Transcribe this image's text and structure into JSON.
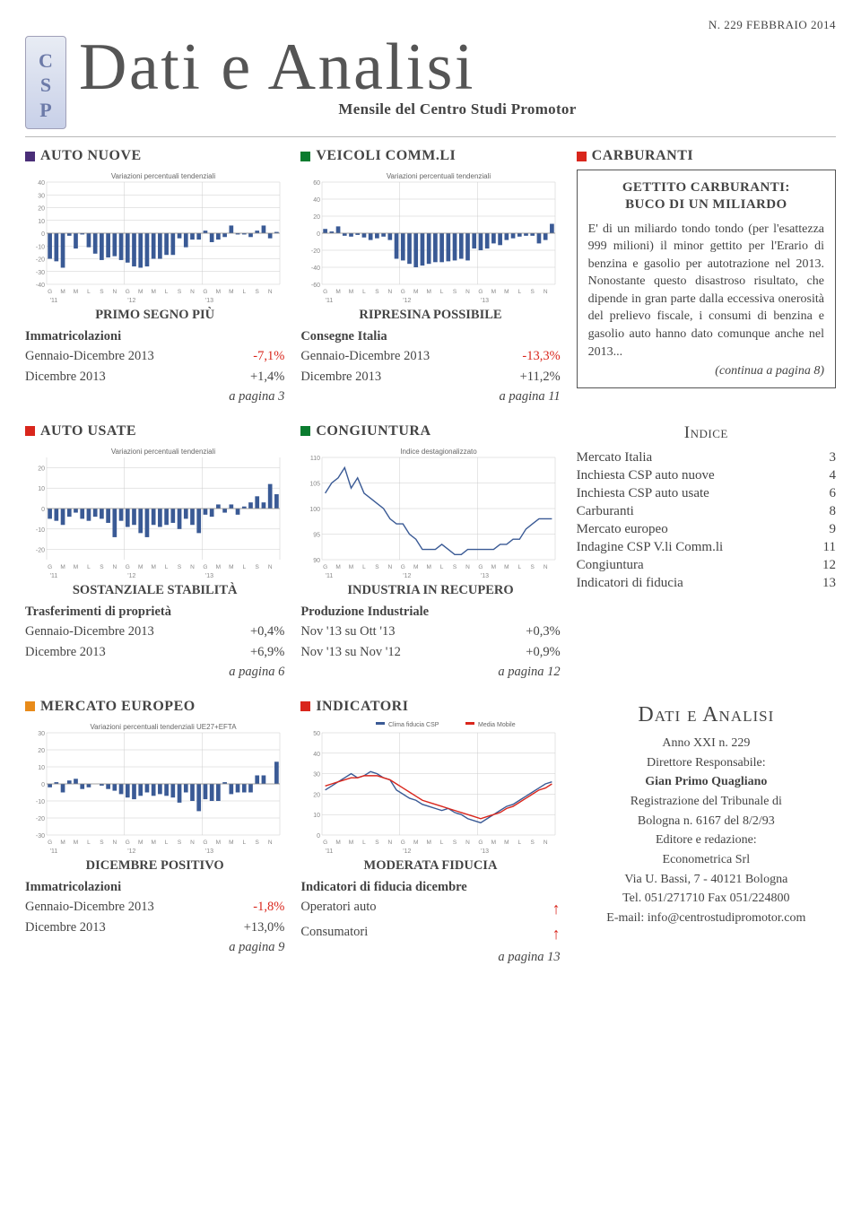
{
  "issue": "N. 229 FEBBRAIO 2014",
  "csp": [
    "C",
    "S",
    "P"
  ],
  "title": "Dati e Analisi",
  "subtitle": "Mensile del Centro Studi Promotor",
  "months": [
    "G",
    "M",
    "M",
    "L",
    "S",
    "N",
    "G",
    "M",
    "M",
    "L",
    "S",
    "N",
    "G",
    "M",
    "M",
    "L",
    "S",
    "N"
  ],
  "xlabels": [
    "'11",
    "'12",
    "'13"
  ],
  "sections": {
    "auto_nuove": {
      "color": "#4a2e78",
      "label": "AUTO NUOVE",
      "chart_label": "Variazioni percentuali tendenziali",
      "ylim": [
        -40,
        40
      ],
      "ytick": 10,
      "bars": [
        -20,
        -22,
        -27,
        -2,
        -12,
        -1,
        -11,
        -16,
        -21,
        -19,
        -18,
        -21,
        -23,
        -26,
        -27,
        -26,
        -20,
        -20,
        -17,
        -17,
        -4,
        -11,
        -5,
        -5,
        2,
        -7,
        -5,
        -3,
        6,
        -1,
        -1,
        -3,
        2,
        6,
        -4,
        1
      ],
      "title": "PRIMO SEGNO PIÙ",
      "head": "Immatricolazioni",
      "row1_label": "Gennaio-Dicembre 2013",
      "row1_val": "-7,1%",
      "row2_label": "Dicembre 2013",
      "row2_val": "+1,4%",
      "page": "a pagina 3"
    },
    "veicoli": {
      "color": "#0a7c2f",
      "label": "VEICOLI COMM.LI",
      "chart_label": "Variazioni percentuali tendenziali",
      "ylim": [
        -60,
        60
      ],
      "ytick": 20,
      "bars": [
        5,
        2,
        8,
        -3,
        -4,
        -2,
        -5,
        -8,
        -6,
        -4,
        -8,
        -30,
        -32,
        -36,
        -40,
        -38,
        -36,
        -34,
        -34,
        -33,
        -32,
        -30,
        -32,
        -18,
        -20,
        -18,
        -12,
        -14,
        -8,
        -6,
        -4,
        -3,
        -3,
        -12,
        -8,
        11
      ],
      "title": "RIPRESINA POSSIBILE",
      "head": "Consegne Italia",
      "row1_label": "Gennaio-Dicembre 2013",
      "row1_val": "-13,3%",
      "row2_label": "Dicembre 2013",
      "row2_val": "+11,2%",
      "page": "a pagina 11"
    },
    "carburanti": {
      "color": "#d9261c",
      "label": "CARBURANTI",
      "box_title_1": "GETTITO CARBURANTI:",
      "box_title_2": "BUCO DI UN MILIARDO",
      "body": "E' di un miliardo tondo tondo (per l'esattezza 999 milioni) il minor gettito per l'Erario di benzina e gasolio per autotrazione nel 2013. Nonostante questo disastroso risultato, che dipende in gran parte dalla eccessiva onerosità del prelievo fiscale, i consumi di benzina e gasolio auto hanno dato comunque anche nel 2013...",
      "cont": "(continua a pagina 8)"
    },
    "auto_usate": {
      "color": "#d9261c",
      "label": "AUTO USATE",
      "chart_label": "Variazioni percentuali tendenziali",
      "ylim": [
        -25,
        25
      ],
      "ytick": 10,
      "yoffset": 5,
      "bars": [
        -5,
        -6,
        -8,
        -4,
        -2,
        -5,
        -6,
        -4,
        -5,
        -7,
        -14,
        -6,
        -9,
        -8,
        -12,
        -14,
        -8,
        -9,
        -8,
        -7,
        -10,
        -5,
        -8,
        -12,
        -3,
        -4,
        2,
        -2,
        2,
        -3,
        1,
        3,
        6,
        3,
        12,
        7
      ],
      "title": "SOSTANZIALE STABILITÀ",
      "head": "Trasferimenti di proprietà",
      "row1_label": "Gennaio-Dicembre 2013",
      "row1_val": "+0,4%",
      "row2_label": "Dicembre 2013",
      "row2_val": "+6,9%",
      "page": "a pagina 6"
    },
    "congiuntura": {
      "color": "#0a7c2f",
      "label": "CONGIUNTURA",
      "chart_label": "Indice destagionalizzato",
      "ylim": [
        90,
        110
      ],
      "ytick": 5,
      "line": [
        103,
        105,
        106,
        108,
        104,
        106,
        103,
        102,
        101,
        100,
        98,
        97,
        97,
        95,
        94,
        92,
        92,
        92,
        93,
        92,
        91,
        91,
        92,
        92,
        92,
        92,
        92,
        93,
        93,
        94,
        94,
        96,
        97,
        98,
        98,
        98
      ],
      "title": "INDUSTRIA IN RECUPERO",
      "head": "Produzione Industriale",
      "row1_label": "Nov '13 su Ott '13",
      "row1_val": "+0,3%",
      "row2_label": "Nov '13 su Nov '12",
      "row2_val": "+0,9%",
      "page": "a pagina 12"
    },
    "indice": {
      "title": "Indice",
      "items": [
        {
          "l": "Mercato Italia",
          "p": "3"
        },
        {
          "l": "Inchiesta CSP auto nuove",
          "p": "4"
        },
        {
          "l": "Inchiesta CSP auto usate",
          "p": "6"
        },
        {
          "l": "Carburanti",
          "p": "8"
        },
        {
          "l": "Mercato europeo",
          "p": "9"
        },
        {
          "l": "Indagine CSP V.li Comm.li",
          "p": "11"
        },
        {
          "l": "Congiuntura",
          "p": "12"
        },
        {
          "l": "Indicatori di fiducia",
          "p": "13"
        }
      ]
    },
    "mercato": {
      "color": "#e88b1a",
      "label": "MERCATO EUROPEO",
      "chart_label": "Variazioni percentuali tendenziali UE27+EFTA",
      "ylim": [
        -30,
        30
      ],
      "ytick": 10,
      "bars": [
        -2,
        1,
        -5,
        2,
        3,
        -3,
        -2,
        0,
        -1,
        -3,
        -4,
        -6,
        -8,
        -9,
        -7,
        -5,
        -7,
        -6,
        -7,
        -8,
        -11,
        -5,
        -10,
        -16,
        -9,
        -10,
        -10,
        1,
        -6,
        -5,
        -5,
        -5,
        5,
        5,
        0,
        13
      ],
      "title": "DICEMBRE POSITIVO",
      "head": "Immatricolazioni",
      "row1_label": "Gennaio-Dicembre 2013",
      "row1_val": "-1,8%",
      "row2_label": "Dicembre 2013",
      "row2_val": "+13,0%",
      "page": "a pagina 9"
    },
    "indicatori": {
      "color": "#d9261c",
      "label": "INDICATORI",
      "chart_legend1": "Clima fiducia CSP",
      "chart_legend2": "Media Mobile",
      "ylim": [
        0,
        50
      ],
      "ytick": 10,
      "line1": [
        22,
        24,
        26,
        28,
        30,
        28,
        29,
        31,
        30,
        28,
        27,
        22,
        20,
        18,
        17,
        15,
        14,
        13,
        12,
        13,
        11,
        10,
        8,
        7,
        6,
        8,
        10,
        12,
        14,
        15,
        17,
        19,
        21,
        23,
        25,
        26
      ],
      "line2": [
        24,
        25,
        26,
        27,
        28,
        28,
        29,
        29,
        29,
        28,
        27,
        25,
        23,
        21,
        19,
        17,
        16,
        15,
        14,
        13,
        12,
        11,
        10,
        9,
        8,
        9,
        10,
        11,
        13,
        14,
        16,
        18,
        20,
        22,
        23,
        25
      ],
      "title": "MODERATA FIDUCIA",
      "head": "Indicatori di fiducia dicembre",
      "row1_label": "Operatori auto",
      "row2_label": "Consumatori",
      "page": "a pagina 13"
    },
    "colophon": {
      "brand": "Dati e Analisi",
      "line1": "Anno XXI n. 229",
      "line2": "Direttore Responsabile:",
      "line3": "Gian Primo Quagliano",
      "line4a": "Registrazione del Tribunale di",
      "line4b": "Bologna n. 6167 del 8/2/93",
      "line5": "Editore e redazione:",
      "line6": "Econometrica Srl",
      "line7": "Via U. Bassi, 7 - 40121 Bologna",
      "line8": "Tel. 051/271710 Fax 051/224800",
      "line9": "E-mail: info@centrostudipromotor.com"
    }
  }
}
